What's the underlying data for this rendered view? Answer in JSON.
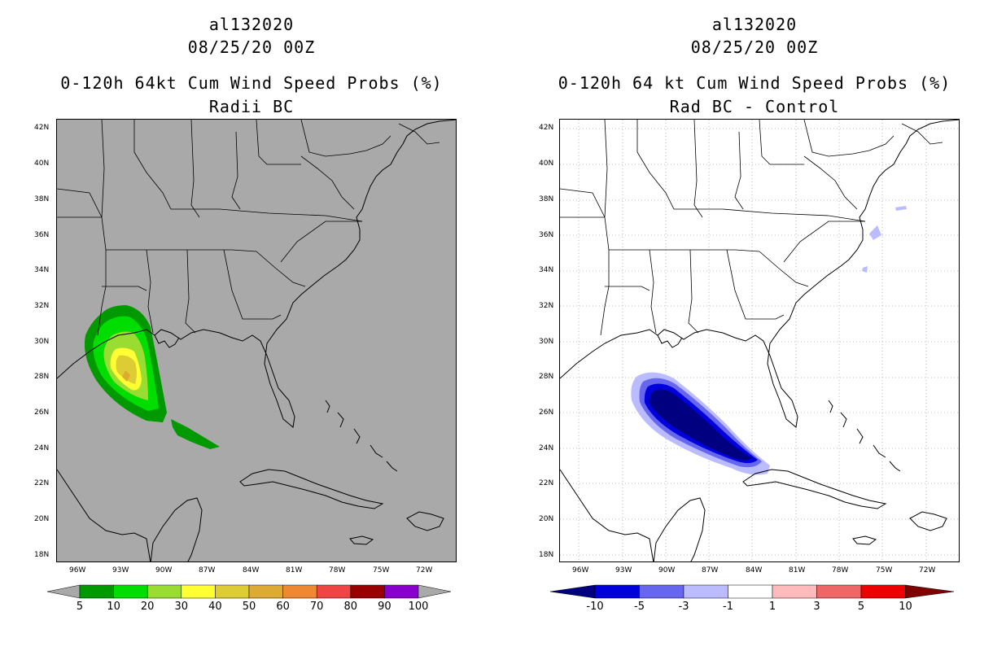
{
  "left_panel": {
    "storm_id": "al132020",
    "datetime": "08/25/20 00Z",
    "title": "0-120h 64kt Cum Wind Speed Probs (%)",
    "subtitle": "Radii BC",
    "map_background": "#a9a9a9",
    "colorbar": {
      "labels": [
        "5",
        "10",
        "20",
        "30",
        "40",
        "50",
        "60",
        "70",
        "80",
        "90",
        "100"
      ],
      "colors": [
        "#009900",
        "#00dd00",
        "#99dd33",
        "#ffff33",
        "#ddcc33",
        "#ddaa33",
        "#ee8833",
        "#ee4444",
        "#990000",
        "#8800cc"
      ],
      "extend_color": "#a9a9a9"
    },
    "features": [
      {
        "name": "prob-5-10",
        "color": "#009900"
      },
      {
        "name": "prob-10-20",
        "color": "#00dd00"
      },
      {
        "name": "prob-20-30",
        "color": "#99dd33"
      },
      {
        "name": "prob-30-40",
        "color": "#ffff33"
      },
      {
        "name": "prob-40-50",
        "color": "#ddcc33"
      },
      {
        "name": "prob-50-60",
        "color": "#ddaa33"
      }
    ]
  },
  "right_panel": {
    "storm_id": "al132020",
    "datetime": "08/25/20 00Z",
    "title": "0-120h 64 kt Cum Wind Speed Probs (%)",
    "subtitle": "Rad BC - Control",
    "map_background": "#ffffff",
    "colorbar": {
      "labels": [
        "-10",
        "-5",
        "-3",
        "-1",
        "1",
        "3",
        "5",
        "10"
      ],
      "colors": [
        "#0000dd",
        "#6666ee",
        "#bbbbff",
        "#ffffff",
        "#ffbbbb",
        "#ee6666",
        "#ee0000"
      ],
      "low_extend": "#000080",
      "high_extend": "#800000"
    }
  },
  "axes": {
    "lat_labels": [
      "42N",
      "40N",
      "38N",
      "36N",
      "34N",
      "32N",
      "30N",
      "28N",
      "26N",
      "24N",
      "22N",
      "20N",
      "18N"
    ],
    "lon_labels": [
      "96W",
      "93W",
      "90W",
      "87W",
      "84W",
      "81W",
      "78W",
      "75W",
      "72W"
    ]
  }
}
